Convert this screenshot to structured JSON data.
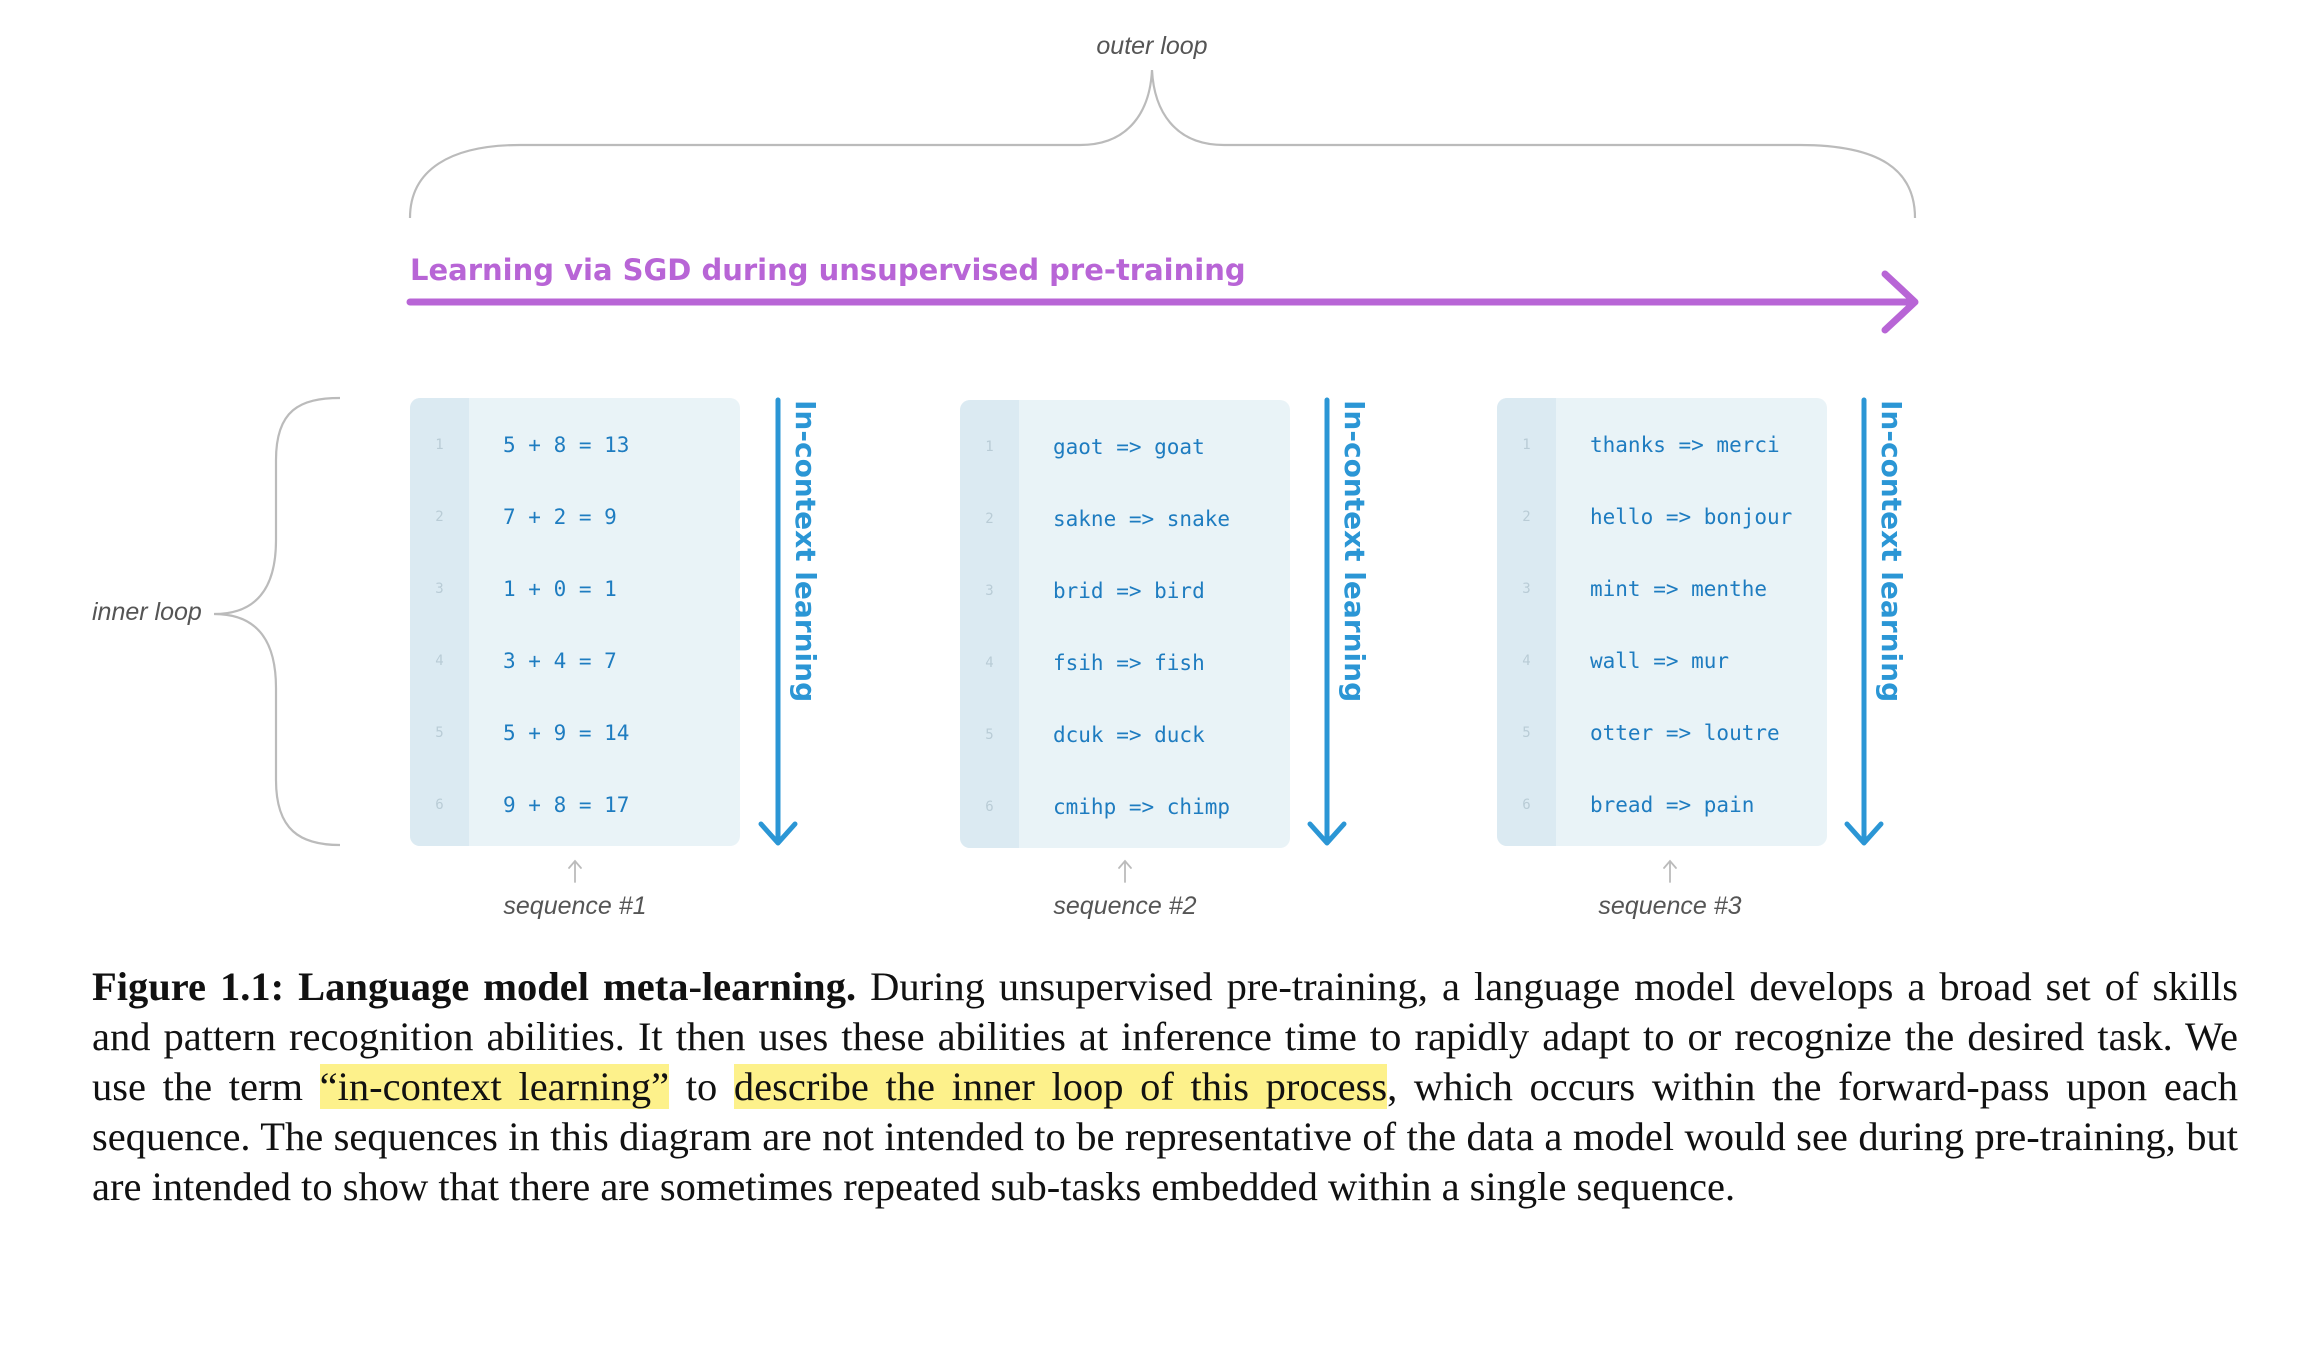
{
  "diagram": {
    "outer_loop_label": "outer loop",
    "inner_loop_label": "inner loop",
    "sgd_label": "Learning via SGD during unsupervised pre-training",
    "in_context_label": "In-context learning",
    "colors": {
      "sgd": "#b865d6",
      "in_context": "#2b96d5",
      "code": "#1e7cc0",
      "box_bg": "#e9f3f7",
      "gutter_bg": "#dbeaf2",
      "brace": "#bbbbbb"
    },
    "sequences": [
      {
        "caption": "sequence #1",
        "lines": [
          {
            "n": "1",
            "text": "5 + 8 = 13"
          },
          {
            "n": "2",
            "text": "7 + 2 = 9"
          },
          {
            "n": "3",
            "text": "1 + 0 = 1"
          },
          {
            "n": "4",
            "text": "3 + 4 = 7"
          },
          {
            "n": "5",
            "text": "5 + 9 = 14"
          },
          {
            "n": "6",
            "text": "9 + 8 = 17"
          }
        ]
      },
      {
        "caption": "sequence #2",
        "lines": [
          {
            "n": "1",
            "text": "gaot => goat"
          },
          {
            "n": "2",
            "text": "sakne => snake"
          },
          {
            "n": "3",
            "text": "brid => bird"
          },
          {
            "n": "4",
            "text": "fsih => fish"
          },
          {
            "n": "5",
            "text": "dcuk => duck"
          },
          {
            "n": "6",
            "text": "cmihp => chimp"
          }
        ]
      },
      {
        "caption": "sequence #3",
        "lines": [
          {
            "n": "1",
            "text": "thanks => merci"
          },
          {
            "n": "2",
            "text": "hello => bonjour"
          },
          {
            "n": "3",
            "text": "mint => menthe"
          },
          {
            "n": "4",
            "text": "wall => mur"
          },
          {
            "n": "5",
            "text": "otter => loutre"
          },
          {
            "n": "6",
            "text": "bread => pain"
          }
        ]
      }
    ]
  },
  "caption": {
    "figure_label": "Figure 1.1: Language model meta-learning.",
    "part1": " During unsupervised pre-training, a language model develops a broad set of skills and pattern recognition abilities. It then uses these abilities at inference time to rapidly adapt to or recognize the desired task. We use the term ",
    "highlight1": "“in-context learning”",
    "part2": " to ",
    "highlight2": "describe the inner loop of this process",
    "part3": ", which occurs within the forward-pass upon each sequence. The sequences in this diagram are not intended to be representative of the data a model would see during pre-training, but are intended to show that there are sometimes repeated sub-tasks embedded within a single sequence."
  }
}
